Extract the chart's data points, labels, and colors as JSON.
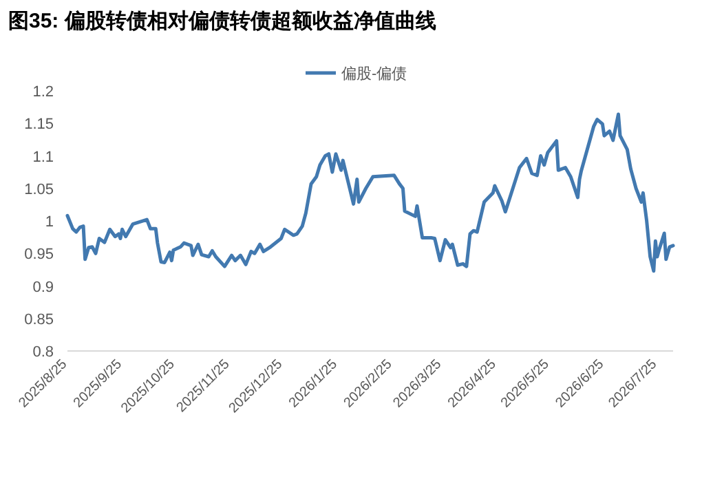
{
  "chart_data": {
    "type": "line",
    "title": "图35: 偏股转债相对偏债转债超额收益净值曲线",
    "legend": "top",
    "xlim": [
      "2025-08-25",
      "2026-08-03"
    ],
    "ylim": [
      0.8,
      1.2
    ],
    "yticks": [
      0.8,
      0.85,
      0.9,
      0.95,
      1,
      1.05,
      1.1,
      1.15,
      1.2
    ],
    "xticks": [
      {
        "value": "2025-08-25",
        "label": "2025/8/25"
      },
      {
        "value": "2025-09-25",
        "label": "2025/9/25"
      },
      {
        "value": "2025-10-25",
        "label": "2025/10/25"
      },
      {
        "value": "2025-11-25",
        "label": "2025/11/25"
      },
      {
        "value": "2025-12-25",
        "label": "2025/12/25"
      },
      {
        "value": "2026-01-25",
        "label": "2026/1/25"
      },
      {
        "value": "2026-02-25",
        "label": "2026/2/25"
      },
      {
        "value": "2026-03-25",
        "label": "2026/3/25"
      },
      {
        "value": "2026-04-25",
        "label": "2026/4/25"
      },
      {
        "value": "2026-05-25",
        "label": "2026/5/25"
      },
      {
        "value": "2026-06-25",
        "label": "2026/6/25"
      },
      {
        "value": "2026-07-25",
        "label": "2026/7/25"
      }
    ],
    "x": [
      "2025-08-25",
      "2025-08-28",
      "2025-08-30",
      "2025-09-01",
      "2025-09-03",
      "2025-09-04",
      "2025-09-06",
      "2025-09-08",
      "2025-09-10",
      "2025-09-12",
      "2025-09-15",
      "2025-09-18",
      "2025-09-21",
      "2025-09-23",
      "2025-09-24",
      "2025-09-25",
      "2025-09-27",
      "2025-10-01",
      "2025-10-09",
      "2025-10-11",
      "2025-10-14",
      "2025-10-15",
      "2025-10-17",
      "2025-10-19",
      "2025-10-22",
      "2025-10-23",
      "2025-10-24",
      "2025-10-28",
      "2025-10-30",
      "2025-11-03",
      "2025-11-04",
      "2025-11-07",
      "2025-11-09",
      "2025-11-13",
      "2025-11-15",
      "2025-11-17",
      "2025-11-22",
      "2025-11-26",
      "2025-11-28",
      "2025-12-01",
      "2025-12-04",
      "2025-12-07",
      "2025-12-09",
      "2025-12-12",
      "2025-12-14",
      "2025-12-18",
      "2025-12-24",
      "2025-12-26",
      "2025-12-31",
      "2026-01-02",
      "2026-01-05",
      "2026-01-07",
      "2026-01-10",
      "2026-01-13",
      "2026-01-15",
      "2026-01-18",
      "2026-01-20",
      "2026-01-22",
      "2026-01-24",
      "2026-01-27",
      "2026-01-28",
      "2026-02-03",
      "2026-02-05",
      "2026-02-06",
      "2026-02-10",
      "2026-02-14",
      "2026-02-26",
      "2026-03-01",
      "2026-03-03",
      "2026-03-04",
      "2026-03-10",
      "2026-03-11",
      "2026-03-14",
      "2026-03-19",
      "2026-03-21",
      "2026-03-24",
      "2026-03-27",
      "2026-03-30",
      "2026-03-31",
      "2026-04-03",
      "2026-04-06",
      "2026-04-08",
      "2026-04-10",
      "2026-04-12",
      "2026-04-14",
      "2026-04-18",
      "2026-04-23",
      "2026-04-24",
      "2026-04-28",
      "2026-04-30",
      "2026-05-02",
      "2026-05-08",
      "2026-05-12",
      "2026-05-15",
      "2026-05-18",
      "2026-05-20",
      "2026-05-22",
      "2026-05-24",
      "2026-05-29",
      "2026-05-30",
      "2026-06-03",
      "2026-06-06",
      "2026-06-10",
      "2026-06-11",
      "2026-06-12",
      "2026-06-19",
      "2026-06-21",
      "2026-06-24",
      "2026-06-25",
      "2026-06-28",
      "2026-06-30",
      "2026-07-03",
      "2026-07-04",
      "2026-07-08",
      "2026-07-10",
      "2026-07-13",
      "2026-07-16",
      "2026-07-17",
      "2026-07-19",
      "2026-07-21",
      "2026-07-23",
      "2026-07-24",
      "2026-07-25",
      "2026-07-26",
      "2026-07-29",
      "2026-07-30",
      "2026-08-01",
      "2026-08-03"
    ],
    "series": [
      {
        "name": "偏股-偏债",
        "color": "#4279b0",
        "values": [
          1.008,
          0.988,
          0.983,
          0.99,
          0.992,
          0.941,
          0.959,
          0.96,
          0.95,
          0.973,
          0.967,
          0.987,
          0.976,
          0.98,
          0.973,
          0.987,
          0.976,
          0.995,
          1.002,
          0.988,
          0.988,
          0.966,
          0.937,
          0.936,
          0.952,
          0.939,
          0.955,
          0.96,
          0.966,
          0.962,
          0.947,
          0.964,
          0.948,
          0.945,
          0.954,
          0.945,
          0.93,
          0.947,
          0.939,
          0.947,
          0.933,
          0.953,
          0.95,
          0.964,
          0.953,
          0.96,
          0.973,
          0.987,
          0.978,
          0.98,
          0.992,
          1.012,
          1.057,
          1.068,
          1.086,
          1.1,
          1.103,
          1.075,
          1.103,
          1.078,
          1.093,
          1.026,
          1.064,
          1.029,
          1.05,
          1.068,
          1.07,
          1.057,
          1.05,
          1.015,
          1.007,
          1.023,
          0.974,
          0.974,
          0.973,
          0.939,
          0.971,
          0.959,
          0.964,
          0.932,
          0.934,
          0.93,
          0.98,
          0.985,
          0.983,
          1.029,
          1.043,
          1.054,
          1.031,
          1.014,
          1.031,
          1.082,
          1.096,
          1.073,
          1.07,
          1.1,
          1.086,
          1.105,
          1.123,
          1.078,
          1.082,
          1.068,
          1.036,
          1.064,
          1.077,
          1.145,
          1.156,
          1.149,
          1.131,
          1.138,
          1.124,
          1.164,
          1.131,
          1.11,
          1.08,
          1.05,
          1.029,
          1.043,
          1.001,
          0.945,
          0.923,
          0.969,
          0.945,
          0.955,
          0.981,
          0.941,
          0.96,
          0.962
        ]
      }
    ]
  }
}
